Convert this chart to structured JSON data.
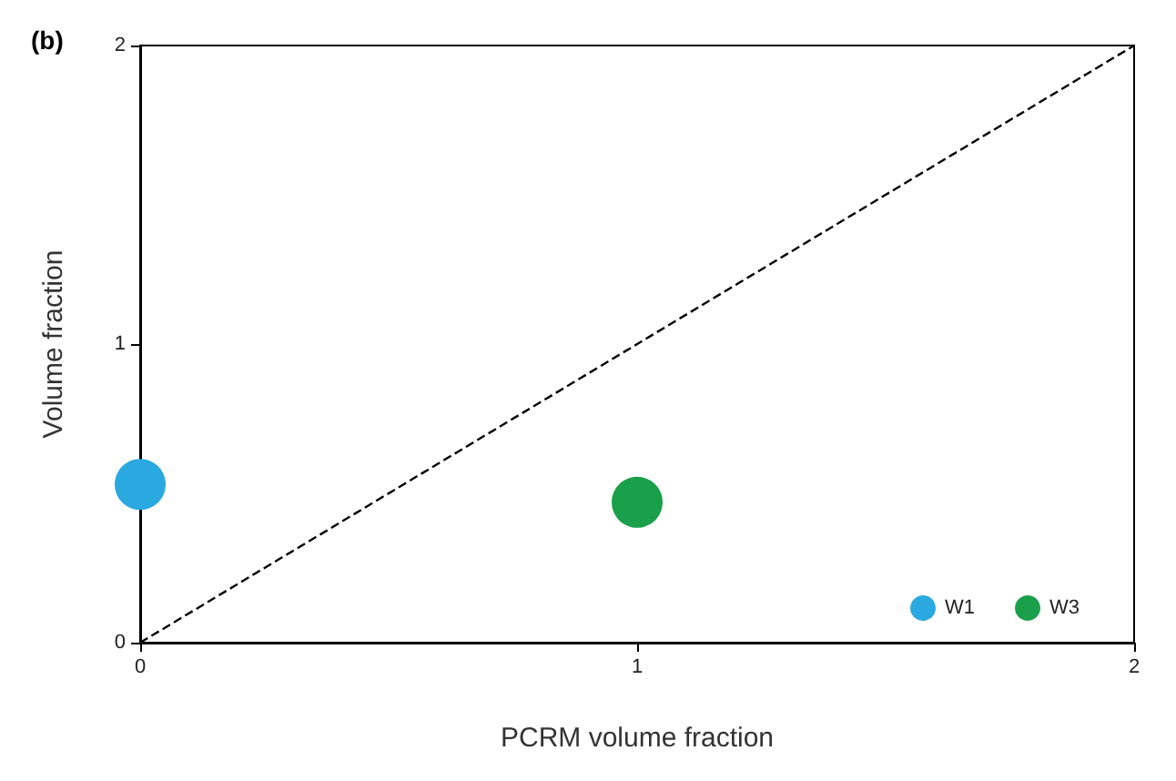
{
  "chart_data": {
    "type": "scatter",
    "title": "(b)",
    "xlabel": "PCRM volume fraction",
    "ylabel": "Volume fraction",
    "xlim": [
      0,
      2
    ],
    "ylim": [
      0,
      2
    ],
    "xticks": [
      0,
      1,
      2
    ],
    "yticks": [
      0,
      1,
      2
    ],
    "grid": false,
    "legend": "bottom right",
    "series": [
      {
        "name": "W1",
        "color": "#29a9e0",
        "x": [
          0
        ],
        "values": [
          0.53
        ],
        "marker": "circle"
      },
      {
        "name": "W3",
        "color": "#1aa04a",
        "x": [
          1
        ],
        "values": [
          0.47
        ],
        "marker": "circle"
      },
      {
        "type": "line",
        "color": "#000000",
        "x": [
          0,
          2
        ],
        "values": [
          0,
          2
        ],
        "line_style": "dashed",
        "marker": "none"
      }
    ]
  }
}
